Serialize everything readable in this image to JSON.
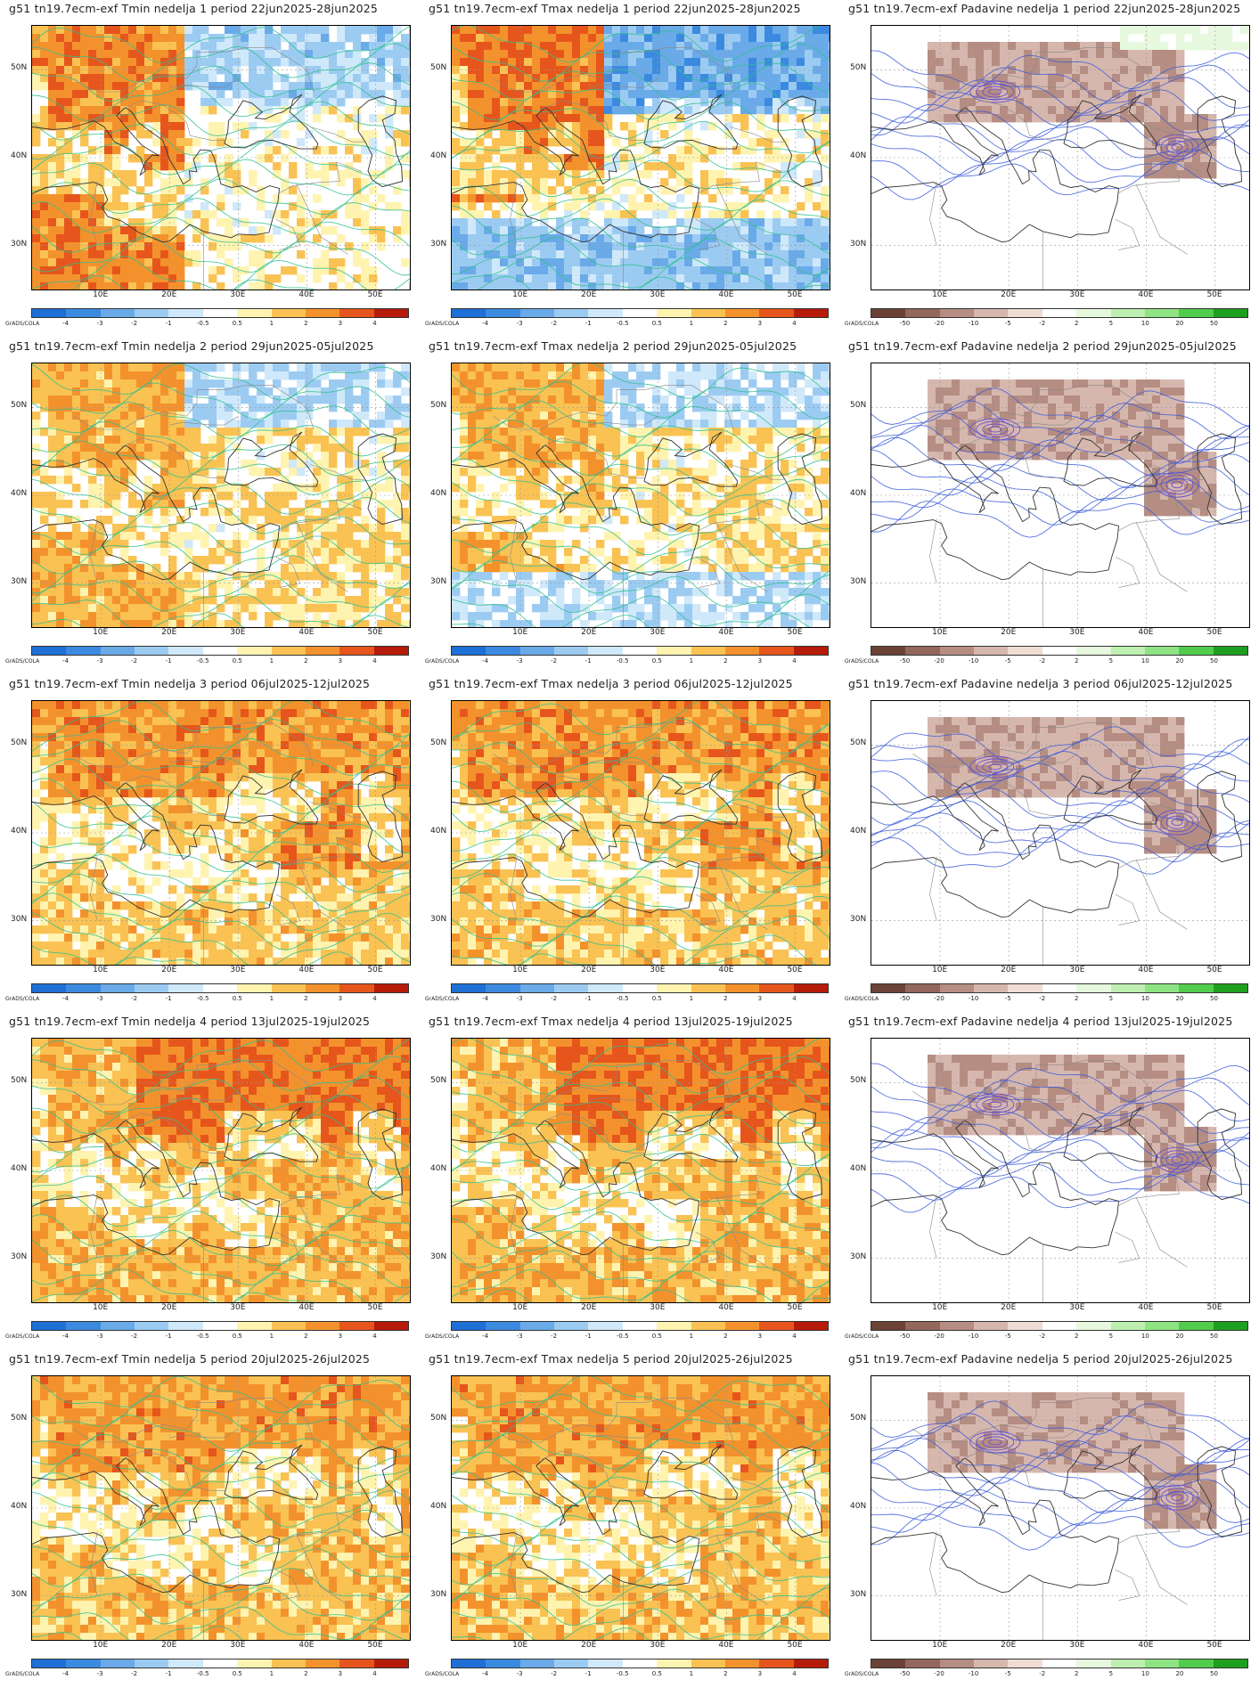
{
  "colorbars": {
    "temp": {
      "labels": [
        "-4",
        "-3",
        "-2",
        "-1",
        "-0.5",
        "0.5",
        "1",
        "2",
        "3",
        "4"
      ],
      "colors": [
        "#1e6fd6",
        "#3b8ae0",
        "#6aaae8",
        "#9ccbf2",
        "#cfe8fa",
        "#ffffff",
        "#fff3b0",
        "#f9c253",
        "#f3922c",
        "#e6561c",
        "#b71b0a"
      ],
      "brand": "GrADS/COLA"
    },
    "precip": {
      "labels": [
        "-50",
        "-20",
        "-10",
        "-5",
        "-2",
        "2",
        "5",
        "10",
        "20",
        "50"
      ],
      "colors": [
        "#6b4236",
        "#93675b",
        "#b58d82",
        "#d6b7ad",
        "#efdcd3",
        "#ffffff",
        "#e6f8dd",
        "#bdf0b0",
        "#8ee483",
        "#52cc4c",
        "#1f9f1f"
      ],
      "brand": "GrADS/COLA"
    }
  },
  "axes": {
    "lon_labels": [
      "10E",
      "20E",
      "30E",
      "40E",
      "50E"
    ],
    "lat_labels": [
      "50N",
      "40N",
      "30N"
    ]
  },
  "panels": [
    {
      "title": "g51 tn19.7ecm-exf Tmin nedelja 1 period 22jun2025-28jun2025",
      "type": "tmin",
      "week": 1
    },
    {
      "title": "g51 tn19.7ecm-exf Tmax nedelja 1 period 22jun2025-28jun2025",
      "type": "tmax",
      "week": 1
    },
    {
      "title": "g51 tn19.7ecm-exf Padavine nedelja 1 period 22jun2025-28jun2025",
      "type": "precip",
      "week": 1
    },
    {
      "title": "g51 tn19.7ecm-exf Tmin nedelja 2 period 29jun2025-05jul2025",
      "type": "tmin",
      "week": 2
    },
    {
      "title": "g51 tn19.7ecm-exf Tmax nedelja 2 period 29jun2025-05jul2025",
      "type": "tmax",
      "week": 2
    },
    {
      "title": "g51 tn19.7ecm-exf Padavine nedelja 2 period 29jun2025-05jul2025",
      "type": "precip",
      "week": 2
    },
    {
      "title": "g51 tn19.7ecm-exf Tmin nedelja 3 period 06jul2025-12jul2025",
      "type": "tmin",
      "week": 3
    },
    {
      "title": "g51 tn19.7ecm-exf Tmax nedelja 3 period 06jul2025-12jul2025",
      "type": "tmax",
      "week": 3
    },
    {
      "title": "g51 tn19.7ecm-exf Padavine nedelja 3 period 06jul2025-12jul2025",
      "type": "precip",
      "week": 3
    },
    {
      "title": "g51 tn19.7ecm-exf Tmin nedelja 4 period 13jul2025-19jul2025",
      "type": "tmin",
      "week": 4
    },
    {
      "title": "g51 tn19.7ecm-exf Tmax nedelja 4 period 13jul2025-19jul2025",
      "type": "tmax",
      "week": 4
    },
    {
      "title": "g51 tn19.7ecm-exf Padavine nedelja 4 period 13jul2025-19jul2025",
      "type": "precip",
      "week": 4
    },
    {
      "title": "g51 tn19.7ecm-exf Tmin nedelja 5 period 20jul2025-26jul2025",
      "type": "tmin",
      "week": 5
    },
    {
      "title": "g51 tn19.7ecm-exf Tmax nedelja 5 period 20jul2025-26jul2025",
      "type": "tmax",
      "week": 5
    },
    {
      "title": "g51 tn19.7ecm-exf Padavine nedelja 5 period 20jul2025-26jul2025",
      "type": "precip",
      "week": 5
    }
  ]
}
